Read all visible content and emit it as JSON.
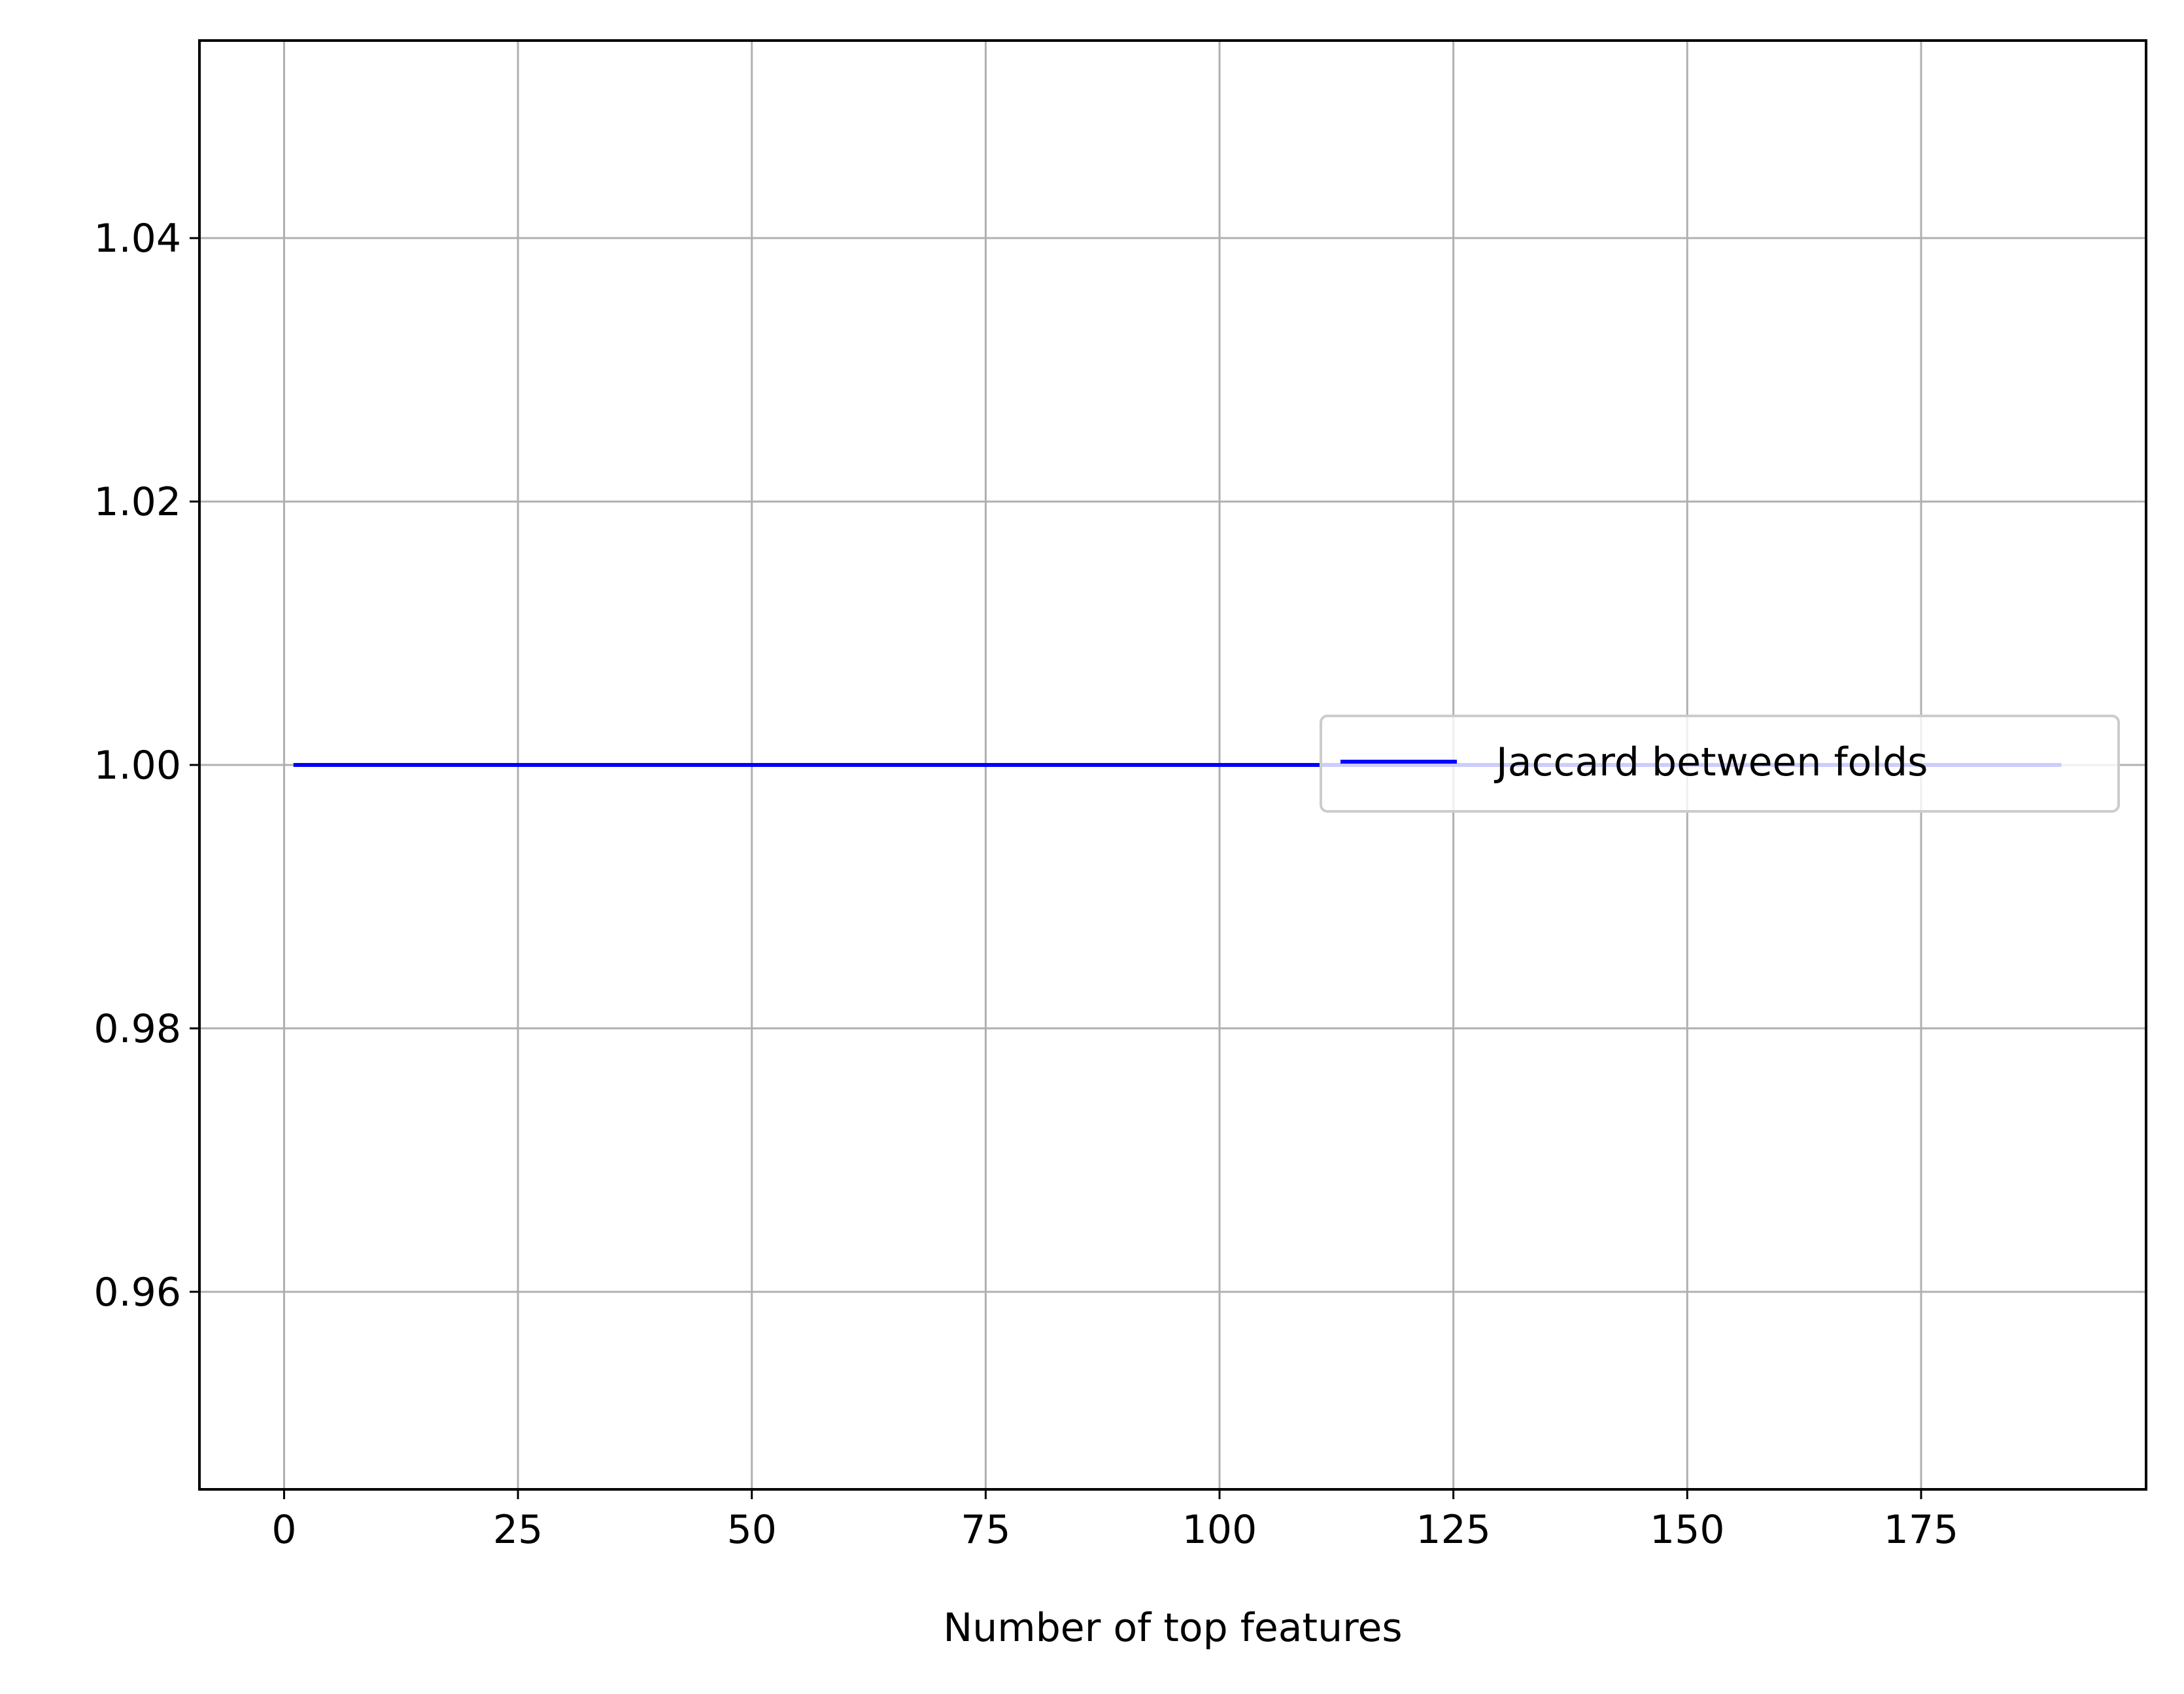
{
  "chart_data": {
    "type": "line",
    "title": "",
    "xlabel": "Number of top features",
    "ylabel": "",
    "xlim": [
      -9.05,
      199.05
    ],
    "ylim": [
      0.945,
      1.055
    ],
    "grid": true,
    "legend_position": "center-right",
    "x_ticks": [
      "0",
      "25",
      "50",
      "75",
      "100",
      "125",
      "150",
      "175"
    ],
    "y_ticks": [
      "0.96",
      "0.98",
      "1.00",
      "1.02",
      "1.04"
    ],
    "series": [
      {
        "name": "Jaccard between folds",
        "color": "#0000ff",
        "x": [
          1,
          190
        ],
        "y": [
          1.0,
          1.0
        ]
      }
    ]
  }
}
